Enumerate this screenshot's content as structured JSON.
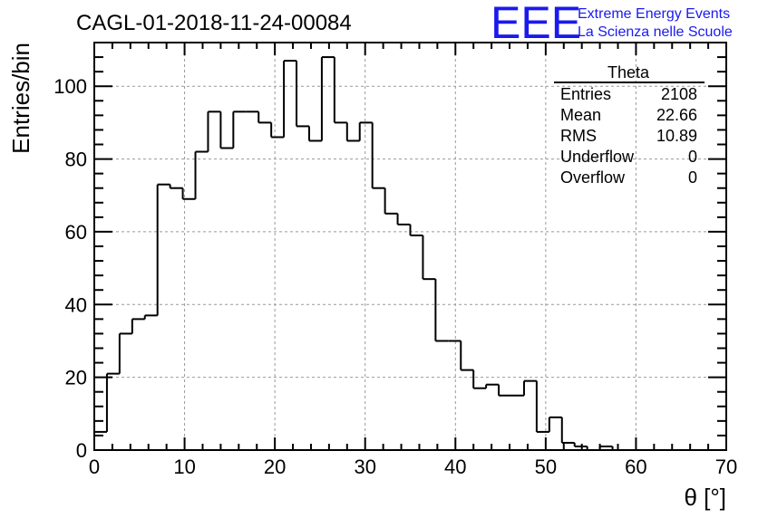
{
  "chart_data": {
    "type": "bar",
    "style": "step-histogram",
    "title": "CAGL-01-2018-11-24-00084",
    "xlabel": "θ [°]",
    "ylabel": "Entries/bin",
    "xlim": [
      0,
      70
    ],
    "ylim": [
      0,
      112
    ],
    "grid": true,
    "bin_width": 1.4,
    "x_ticks": [
      0,
      10,
      20,
      30,
      40,
      50,
      60,
      70
    ],
    "y_ticks": [
      0,
      20,
      40,
      60,
      80,
      100
    ],
    "values": [
      5,
      21,
      32,
      36,
      37,
      73,
      72,
      69,
      82,
      93,
      83,
      93,
      93,
      90,
      86,
      107,
      89,
      85,
      108,
      90,
      85,
      90,
      72,
      65,
      62,
      59,
      47,
      30,
      30,
      22,
      17,
      18,
      15,
      15,
      19,
      5,
      9,
      2,
      1,
      0,
      1,
      0,
      0,
      0,
      0,
      0,
      0,
      0,
      0,
      0
    ],
    "stats": {
      "name": "Theta",
      "rows": [
        {
          "label": "Entries",
          "value": "2108"
        },
        {
          "label": "Mean",
          "value": "22.66"
        },
        {
          "label": "RMS",
          "value": "10.89"
        },
        {
          "label": "Underflow",
          "value": "0"
        },
        {
          "label": "Overflow",
          "value": "0"
        }
      ]
    }
  },
  "logo": {
    "mark": "EEE",
    "line1": "Extreme Energy Events",
    "line2": "La Scienza nelle Scuole",
    "color": "#1a1aee"
  }
}
